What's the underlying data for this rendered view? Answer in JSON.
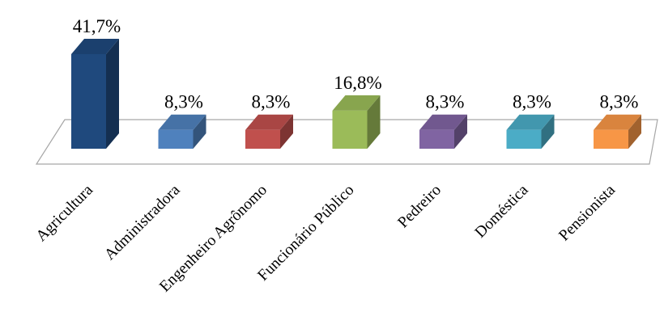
{
  "chart_data": {
    "type": "bar",
    "style": "3d-column",
    "title": "",
    "xlabel": "",
    "ylabel": "",
    "categories": [
      "Agricultura",
      "Administradora",
      "Engenheiro Agrônomo",
      "Funcionário Público",
      "Pedreiro",
      "Doméstica",
      "Pensionista"
    ],
    "values": [
      41.7,
      8.3,
      8.3,
      16.8,
      8.3,
      8.3,
      8.3
    ],
    "value_labels": [
      "41,7%",
      "8,3%",
      "8,3%",
      "16,8%",
      "8,3%",
      "8,3%",
      "8,3%"
    ],
    "colors": [
      "#1F497D",
      "#4F81BD",
      "#C0504D",
      "#9BBB59",
      "#8064A2",
      "#4BACC6",
      "#F79646"
    ],
    "ylim": [
      0,
      41.7
    ],
    "grid": false,
    "legend": "none"
  }
}
